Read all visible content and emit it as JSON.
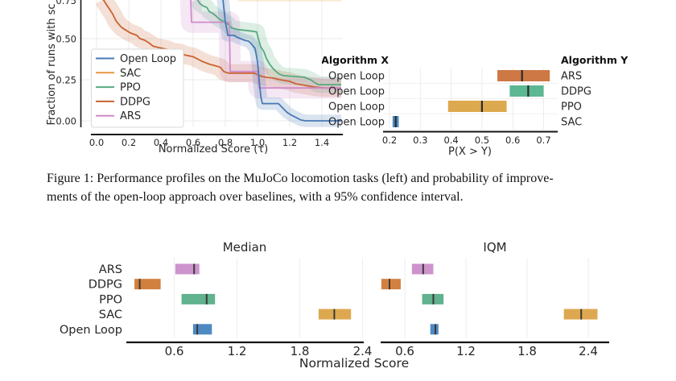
{
  "caption": {
    "line1": "Figure 1: Performance profiles on the MuJoCo locomotion tasks (left) and probability of improve-",
    "line2": "ments of the open-loop approach over baselines, with a 95% confidence interval."
  },
  "chart_data": {
    "performance_profile": {
      "type": "line",
      "xlabel": "Normalized Score (τ)",
      "ylabel": "Fraction of runs with sc",
      "xlim": [
        -0.04,
        1.52
      ],
      "ylim_visible": [
        -0.035,
        0.74
      ],
      "grid": true,
      "legend_position": "lower left",
      "xticks": {
        "values": [
          0.0,
          0.2,
          0.4,
          0.6,
          0.8,
          1.0,
          1.2,
          1.4
        ],
        "labels": [
          "0.0",
          "0.2",
          "0.4",
          "0.6",
          "0.8",
          "1.0",
          "1.2",
          "1.4"
        ]
      },
      "yticks": {
        "values": [
          0.0,
          0.25,
          0.5,
          0.75
        ],
        "labels": [
          "0.00",
          "0.25",
          "0.50",
          "0.75"
        ]
      },
      "series": [
        {
          "name": "SAC",
          "color": "#e9963e",
          "ci_halfwidth": 0.028,
          "points": [
            [
              0.88,
              0.755
            ],
            [
              1.52,
              0.755
            ]
          ]
        },
        {
          "name": "DDPG",
          "color": "#c96230",
          "ci_halfwidth": 0.055,
          "points": [
            [
              0.04,
              0.74
            ],
            [
              0.06,
              0.71
            ],
            [
              0.08,
              0.68
            ],
            [
              0.1,
              0.65
            ],
            [
              0.12,
              0.61
            ],
            [
              0.14,
              0.585
            ],
            [
              0.16,
              0.565
            ],
            [
              0.185,
              0.55
            ],
            [
              0.21,
              0.535
            ],
            [
              0.25,
              0.52
            ],
            [
              0.27,
              0.5
            ],
            [
              0.3,
              0.49
            ],
            [
              0.325,
              0.475
            ],
            [
              0.35,
              0.455
            ],
            [
              0.39,
              0.445
            ],
            [
              0.44,
              0.435
            ],
            [
              0.47,
              0.42
            ],
            [
              0.52,
              0.415
            ],
            [
              0.55,
              0.4
            ],
            [
              0.6,
              0.39
            ],
            [
              0.63,
              0.375
            ],
            [
              0.66,
              0.36
            ],
            [
              0.7,
              0.345
            ],
            [
              0.74,
              0.335
            ],
            [
              0.77,
              0.325
            ],
            [
              0.79,
              0.3
            ],
            [
              0.82,
              0.29
            ],
            [
              0.98,
              0.29
            ],
            [
              1.01,
              0.275
            ],
            [
              1.05,
              0.265
            ],
            [
              1.1,
              0.26
            ],
            [
              1.14,
              0.25
            ],
            [
              1.2,
              0.24
            ],
            [
              1.24,
              0.225
            ],
            [
              1.3,
              0.215
            ],
            [
              1.36,
              0.205
            ],
            [
              1.42,
              0.2
            ],
            [
              1.52,
              0.2
            ]
          ]
        },
        {
          "name": "PPO",
          "color": "#56a97f",
          "ci_halfwidth": 0.05,
          "points": [
            [
              0.625,
              0.74
            ],
            [
              0.64,
              0.715
            ],
            [
              0.66,
              0.7
            ],
            [
              0.685,
              0.69
            ],
            [
              0.7,
              0.665
            ],
            [
              0.72,
              0.655
            ],
            [
              0.74,
              0.64
            ],
            [
              0.76,
              0.62
            ],
            [
              0.78,
              0.61
            ],
            [
              0.8,
              0.6
            ],
            [
              0.82,
              0.585
            ],
            [
              0.84,
              0.565
            ],
            [
              0.88,
              0.555
            ],
            [
              0.93,
              0.55
            ],
            [
              0.97,
              0.545
            ],
            [
              0.995,
              0.54
            ],
            [
              1.005,
              0.5
            ],
            [
              1.02,
              0.45
            ],
            [
              1.04,
              0.42
            ],
            [
              1.055,
              0.38
            ],
            [
              1.075,
              0.345
            ],
            [
              1.095,
              0.32
            ],
            [
              1.115,
              0.3
            ],
            [
              1.135,
              0.285
            ],
            [
              1.16,
              0.275
            ],
            [
              1.23,
              0.27
            ],
            [
              1.29,
              0.265
            ],
            [
              1.33,
              0.25
            ],
            [
              1.36,
              0.23
            ],
            [
              1.38,
              0.22
            ],
            [
              1.52,
              0.22
            ]
          ]
        },
        {
          "name": "ARS",
          "color": "#ce8bc9",
          "ci_halfwidth": 0.065,
          "points": [
            [
              0.585,
              0.74
            ],
            [
              0.59,
              0.6
            ],
            [
              0.825,
              0.6
            ],
            [
              0.83,
              0.3
            ],
            [
              1.0,
              0.3
            ],
            [
              1.01,
              0.2
            ],
            [
              1.52,
              0.2
            ]
          ]
        },
        {
          "name": "Open Loop",
          "color": "#4878b4",
          "ci_halfwidth": 0.038,
          "points": [
            [
              0.785,
              0.74
            ],
            [
              0.8,
              0.6
            ],
            [
              0.81,
              0.555
            ],
            [
              0.815,
              0.52
            ],
            [
              0.855,
              0.52
            ],
            [
              0.87,
              0.51
            ],
            [
              0.895,
              0.5
            ],
            [
              0.92,
              0.49
            ],
            [
              0.945,
              0.485
            ],
            [
              0.96,
              0.47
            ],
            [
              0.985,
              0.44
            ],
            [
              1.0,
              0.36
            ],
            [
              1.01,
              0.25
            ],
            [
              1.02,
              0.15
            ],
            [
              1.03,
              0.105
            ],
            [
              1.13,
              0.105
            ],
            [
              1.155,
              0.08
            ],
            [
              1.185,
              0.05
            ],
            [
              1.21,
              0.035
            ],
            [
              1.24,
              0.02
            ],
            [
              1.27,
              0.005
            ],
            [
              1.3,
              0.0
            ],
            [
              1.52,
              0.0
            ]
          ]
        }
      ],
      "legend": [
        "Open Loop",
        "SAC",
        "PPO",
        "DDPG",
        "ARS"
      ],
      "legend_colors": [
        "#4878b4",
        "#e9963e",
        "#56a97f",
        "#c96230",
        "#ce8bc9"
      ]
    },
    "probability_of_improvement": {
      "type": "interval",
      "header_left": "Algorithm X",
      "header_right": "Algorithm Y",
      "xlabel": "P(X > Y)",
      "xticks": {
        "values": [
          0.2,
          0.3,
          0.4,
          0.5,
          0.6,
          0.7
        ],
        "labels": [
          "0.2",
          "0.3",
          "0.4",
          "0.5",
          "0.6",
          "0.7"
        ]
      },
      "rows": [
        {
          "x_label": "Open Loop",
          "y_label": "ARS",
          "low": 0.55,
          "high": 0.72,
          "point": 0.63,
          "color": "#ce7845"
        },
        {
          "x_label": "Open Loop",
          "y_label": "DDPG",
          "low": 0.59,
          "high": 0.7,
          "point": 0.65,
          "color": "#5cb793"
        },
        {
          "x_label": "Open Loop",
          "y_label": "PPO",
          "low": 0.39,
          "high": 0.58,
          "point": 0.5,
          "color": "#dda94e"
        },
        {
          "x_label": "Open Loop",
          "y_label": "SAC",
          "low": 0.21,
          "high": 0.23,
          "point": 0.22,
          "color": "#4a8bc2"
        }
      ]
    },
    "aggregates": {
      "xlabel": "Normalized Score",
      "xticks": {
        "values": [
          0.6,
          1.2,
          1.8,
          2.4
        ],
        "labels": [
          "0.6",
          "1.2",
          "1.8",
          "2.4"
        ]
      },
      "median": {
        "type": "interval",
        "title": "Median",
        "rows": [
          {
            "label": "ARS",
            "low": 0.61,
            "high": 0.84,
            "point": 0.79,
            "color": "#cc93cc"
          },
          {
            "label": "DDPG",
            "low": 0.22,
            "high": 0.47,
            "point": 0.27,
            "color": "#d2803e"
          },
          {
            "label": "PPO",
            "low": 0.67,
            "high": 0.99,
            "point": 0.91,
            "color": "#61b28e"
          },
          {
            "label": "SAC",
            "low": 1.98,
            "high": 2.29,
            "point": 2.13,
            "color": "#dda84f"
          },
          {
            "label": "Open Loop",
            "low": 0.78,
            "high": 0.96,
            "point": 0.82,
            "color": "#4e8ac2"
          }
        ]
      },
      "iqm": {
        "type": "interval",
        "title": "IQM",
        "rows": [
          {
            "label": "ARS",
            "low": 0.67,
            "high": 0.88,
            "point": 0.78,
            "color": "#cc93cc"
          },
          {
            "label": "DDPG",
            "low": 0.37,
            "high": 0.56,
            "point": 0.45,
            "color": "#d2803e"
          },
          {
            "label": "PPO",
            "low": 0.77,
            "high": 0.98,
            "point": 0.88,
            "color": "#61b28e"
          },
          {
            "label": "SAC",
            "low": 2.16,
            "high": 2.49,
            "point": 2.33,
            "color": "#dda84f"
          },
          {
            "label": "Open Loop",
            "low": 0.85,
            "high": 0.93,
            "point": 0.9,
            "color": "#4e8ac2"
          }
        ]
      }
    }
  }
}
